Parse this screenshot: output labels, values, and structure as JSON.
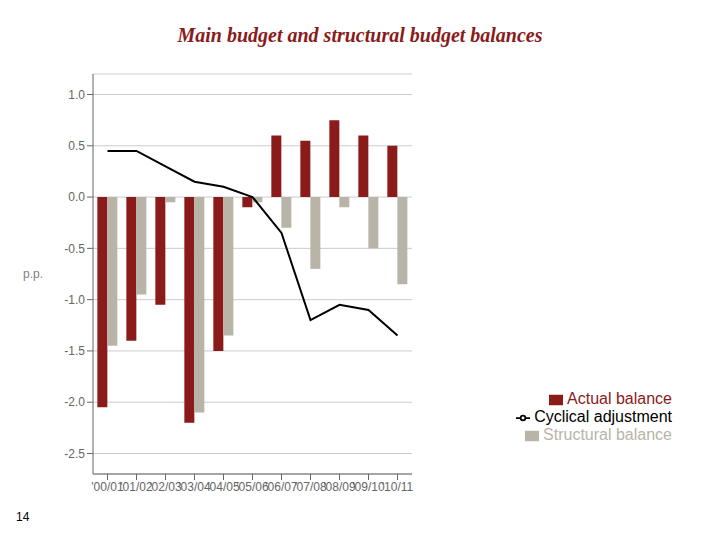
{
  "chart_data": {
    "type": "bar",
    "title": "Main budget and structural budget balances",
    "ylabel": "p.p.",
    "categories": [
      "'00/01",
      "'01/02",
      "'02/03",
      "'03/04",
      "'04/05",
      "'05/06",
      "'06/07",
      "'07/08",
      "'08/09",
      "'09/10",
      "'10/11"
    ],
    "series": [
      {
        "name": "Actual balance",
        "type": "bar",
        "color": "#8B1A1A",
        "values": [
          -2.05,
          -1.4,
          -1.05,
          -2.2,
          -1.5,
          -0.1,
          0.6,
          0.55,
          0.75,
          0.6,
          0.5
        ]
      },
      {
        "name": "Structural balance",
        "type": "bar",
        "color": "#B8B4A8",
        "values": [
          -1.45,
          -0.95,
          -0.05,
          -2.1,
          -1.35,
          -0.05,
          -0.3,
          -0.7,
          -0.1,
          -0.5,
          -0.85
        ]
      },
      {
        "name": "Cyclical adjustment",
        "type": "line",
        "color": "#000000",
        "values": [
          0.45,
          0.45,
          0.3,
          0.15,
          0.1,
          0.0,
          -0.35,
          -1.2,
          -1.05,
          -1.1,
          -1.35
        ]
      }
    ],
    "ylim": [
      -2.7,
      1.2
    ],
    "yticks": [
      -2.5,
      {
        "value": -2.0,
        "label": "-2.0"
      },
      -1.5,
      {
        "value": -1.0,
        "label": "-1.0"
      },
      -0.5,
      {
        "value": 0.0,
        "label": "0.0"
      },
      0.5,
      {
        "value": 1.0,
        "label": "1.0"
      }
    ],
    "grid": true,
    "legend": "lower right",
    "annotations": [
      "14"
    ]
  }
}
